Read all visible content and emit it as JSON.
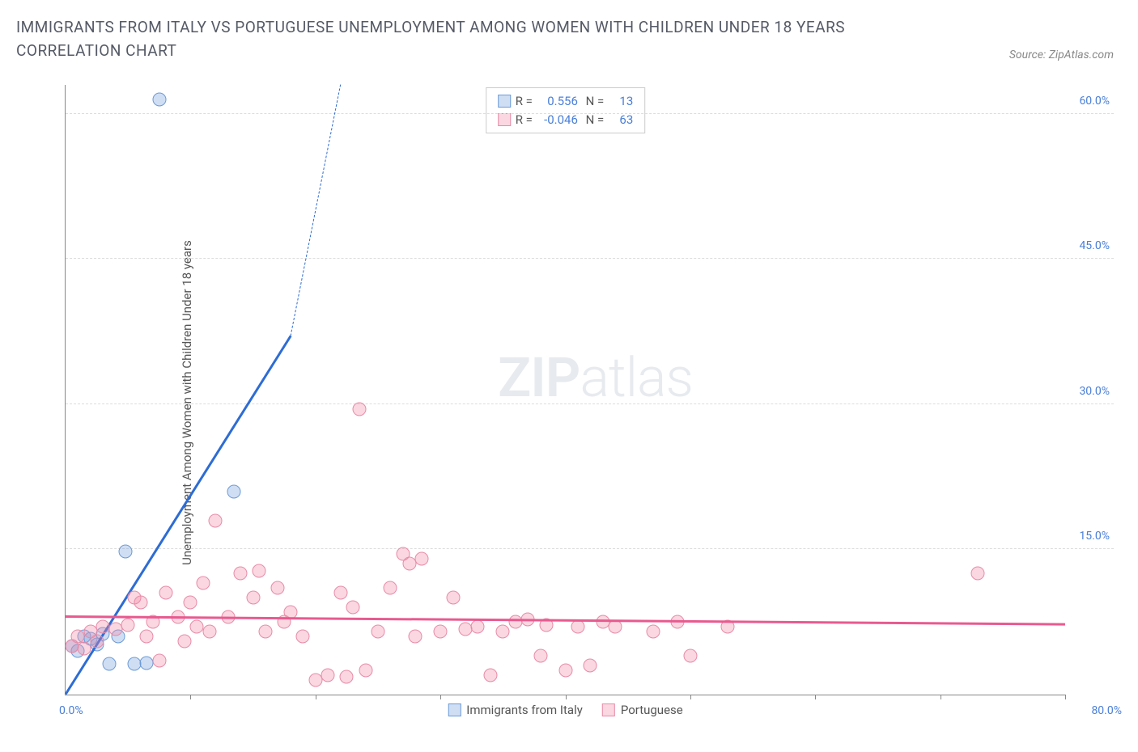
{
  "title": "IMMIGRANTS FROM ITALY VS PORTUGUESE UNEMPLOYMENT AMONG WOMEN WITH CHILDREN UNDER 18 YEARS CORRELATION CHART",
  "source": "Source: ZipAtlas.com",
  "y_axis_label": "Unemployment Among Women with Children Under 18 years",
  "watermark_bold": "ZIP",
  "watermark_light": "atlas",
  "chart": {
    "type": "scatter",
    "background_color": "#ffffff",
    "grid_color": "#dddddd",
    "axis_color": "#888888",
    "tick_label_color": "#4a7fd8",
    "xlim": [
      0,
      80
    ],
    "ylim": [
      0,
      63
    ],
    "x_tick_positions": [
      0,
      10,
      20,
      30,
      40,
      50,
      60,
      70,
      80
    ],
    "x_tick_labels": {
      "left": "0.0%",
      "right": "80.0%"
    },
    "y_ticks": [
      {
        "value": 15,
        "label": "15.0%"
      },
      {
        "value": 30,
        "label": "30.0%"
      },
      {
        "value": 45,
        "label": "45.0%"
      },
      {
        "value": 60,
        "label": "60.0%"
      }
    ],
    "series": [
      {
        "name": "Immigrants from Italy",
        "color_fill": "rgba(120,160,220,0.35)",
        "color_stroke": "#6b9bd8",
        "marker_size": 17,
        "r_value": "0.556",
        "n_value": "13",
        "trend": {
          "color": "#2d6cd4",
          "x1": 0,
          "y1": 0,
          "x2": 18,
          "y2": 37,
          "dash_to_x": 22,
          "dash_to_y": 63
        },
        "points": [
          {
            "x": 0.5,
            "y": 5.0
          },
          {
            "x": 1.0,
            "y": 4.5
          },
          {
            "x": 1.5,
            "y": 6.0
          },
          {
            "x": 2.0,
            "y": 5.8
          },
          {
            "x": 2.5,
            "y": 5.2
          },
          {
            "x": 3.0,
            "y": 6.3
          },
          {
            "x": 3.5,
            "y": 3.2
          },
          {
            "x": 4.2,
            "y": 6.0
          },
          {
            "x": 5.5,
            "y": 3.2
          },
          {
            "x": 6.5,
            "y": 3.3
          },
          {
            "x": 4.8,
            "y": 14.8
          },
          {
            "x": 13.5,
            "y": 21.0
          },
          {
            "x": 7.5,
            "y": 61.5
          }
        ]
      },
      {
        "name": "Portuguese",
        "color_fill": "rgba(240,140,170,0.35)",
        "color_stroke": "#e88ba8",
        "marker_size": 17,
        "r_value": "-0.046",
        "n_value": "63",
        "trend": {
          "color": "#e85a8f",
          "x1": 0,
          "y1": 8.0,
          "x2": 80,
          "y2": 7.2
        },
        "points": [
          {
            "x": 0.5,
            "y": 5.0
          },
          {
            "x": 1.0,
            "y": 6.0
          },
          {
            "x": 1.5,
            "y": 4.8
          },
          {
            "x": 2.0,
            "y": 6.5
          },
          {
            "x": 2.5,
            "y": 5.5
          },
          {
            "x": 3.0,
            "y": 7.0
          },
          {
            "x": 4.0,
            "y": 6.8
          },
          {
            "x": 5.0,
            "y": 7.2
          },
          {
            "x": 5.5,
            "y": 10.0
          },
          {
            "x": 6.0,
            "y": 9.5
          },
          {
            "x": 6.5,
            "y": 6.0
          },
          {
            "x": 7.0,
            "y": 7.5
          },
          {
            "x": 7.5,
            "y": 3.5
          },
          {
            "x": 8.0,
            "y": 10.5
          },
          {
            "x": 9.0,
            "y": 8.0
          },
          {
            "x": 9.5,
            "y": 5.5
          },
          {
            "x": 10.0,
            "y": 9.5
          },
          {
            "x": 10.5,
            "y": 7.0
          },
          {
            "x": 11.0,
            "y": 11.5
          },
          {
            "x": 11.5,
            "y": 6.5
          },
          {
            "x": 12.0,
            "y": 18.0
          },
          {
            "x": 13.0,
            "y": 8.0
          },
          {
            "x": 14.0,
            "y": 12.5
          },
          {
            "x": 15.0,
            "y": 10.0
          },
          {
            "x": 15.5,
            "y": 12.8
          },
          {
            "x": 16.0,
            "y": 6.5
          },
          {
            "x": 17.0,
            "y": 11.0
          },
          {
            "x": 17.5,
            "y": 7.5
          },
          {
            "x": 18.0,
            "y": 8.5
          },
          {
            "x": 19.0,
            "y": 6.0
          },
          {
            "x": 20.0,
            "y": 1.5
          },
          {
            "x": 21.0,
            "y": 2.0
          },
          {
            "x": 22.0,
            "y": 10.5
          },
          {
            "x": 22.5,
            "y": 1.8
          },
          {
            "x": 23.0,
            "y": 9.0
          },
          {
            "x": 24.0,
            "y": 2.5
          },
          {
            "x": 25.0,
            "y": 6.5
          },
          {
            "x": 26.0,
            "y": 11.0
          },
          {
            "x": 27.0,
            "y": 14.5
          },
          {
            "x": 27.5,
            "y": 13.5
          },
          {
            "x": 28.0,
            "y": 6.0
          },
          {
            "x": 28.5,
            "y": 14.0
          },
          {
            "x": 23.5,
            "y": 29.5
          },
          {
            "x": 30.0,
            "y": 6.5
          },
          {
            "x": 31.0,
            "y": 10.0
          },
          {
            "x": 32.0,
            "y": 6.8
          },
          {
            "x": 33.0,
            "y": 7.0
          },
          {
            "x": 34.0,
            "y": 2.0
          },
          {
            "x": 35.0,
            "y": 6.5
          },
          {
            "x": 36.0,
            "y": 7.5
          },
          {
            "x": 37.0,
            "y": 7.8
          },
          {
            "x": 38.0,
            "y": 4.0
          },
          {
            "x": 38.5,
            "y": 7.2
          },
          {
            "x": 40.0,
            "y": 2.5
          },
          {
            "x": 41.0,
            "y": 7.0
          },
          {
            "x": 42.0,
            "y": 3.0
          },
          {
            "x": 43.0,
            "y": 7.5
          },
          {
            "x": 44.0,
            "y": 7.0
          },
          {
            "x": 47.0,
            "y": 6.5
          },
          {
            "x": 49.0,
            "y": 7.5
          },
          {
            "x": 50.0,
            "y": 4.0
          },
          {
            "x": 53.0,
            "y": 7.0
          },
          {
            "x": 73.0,
            "y": 12.5
          }
        ]
      }
    ]
  }
}
